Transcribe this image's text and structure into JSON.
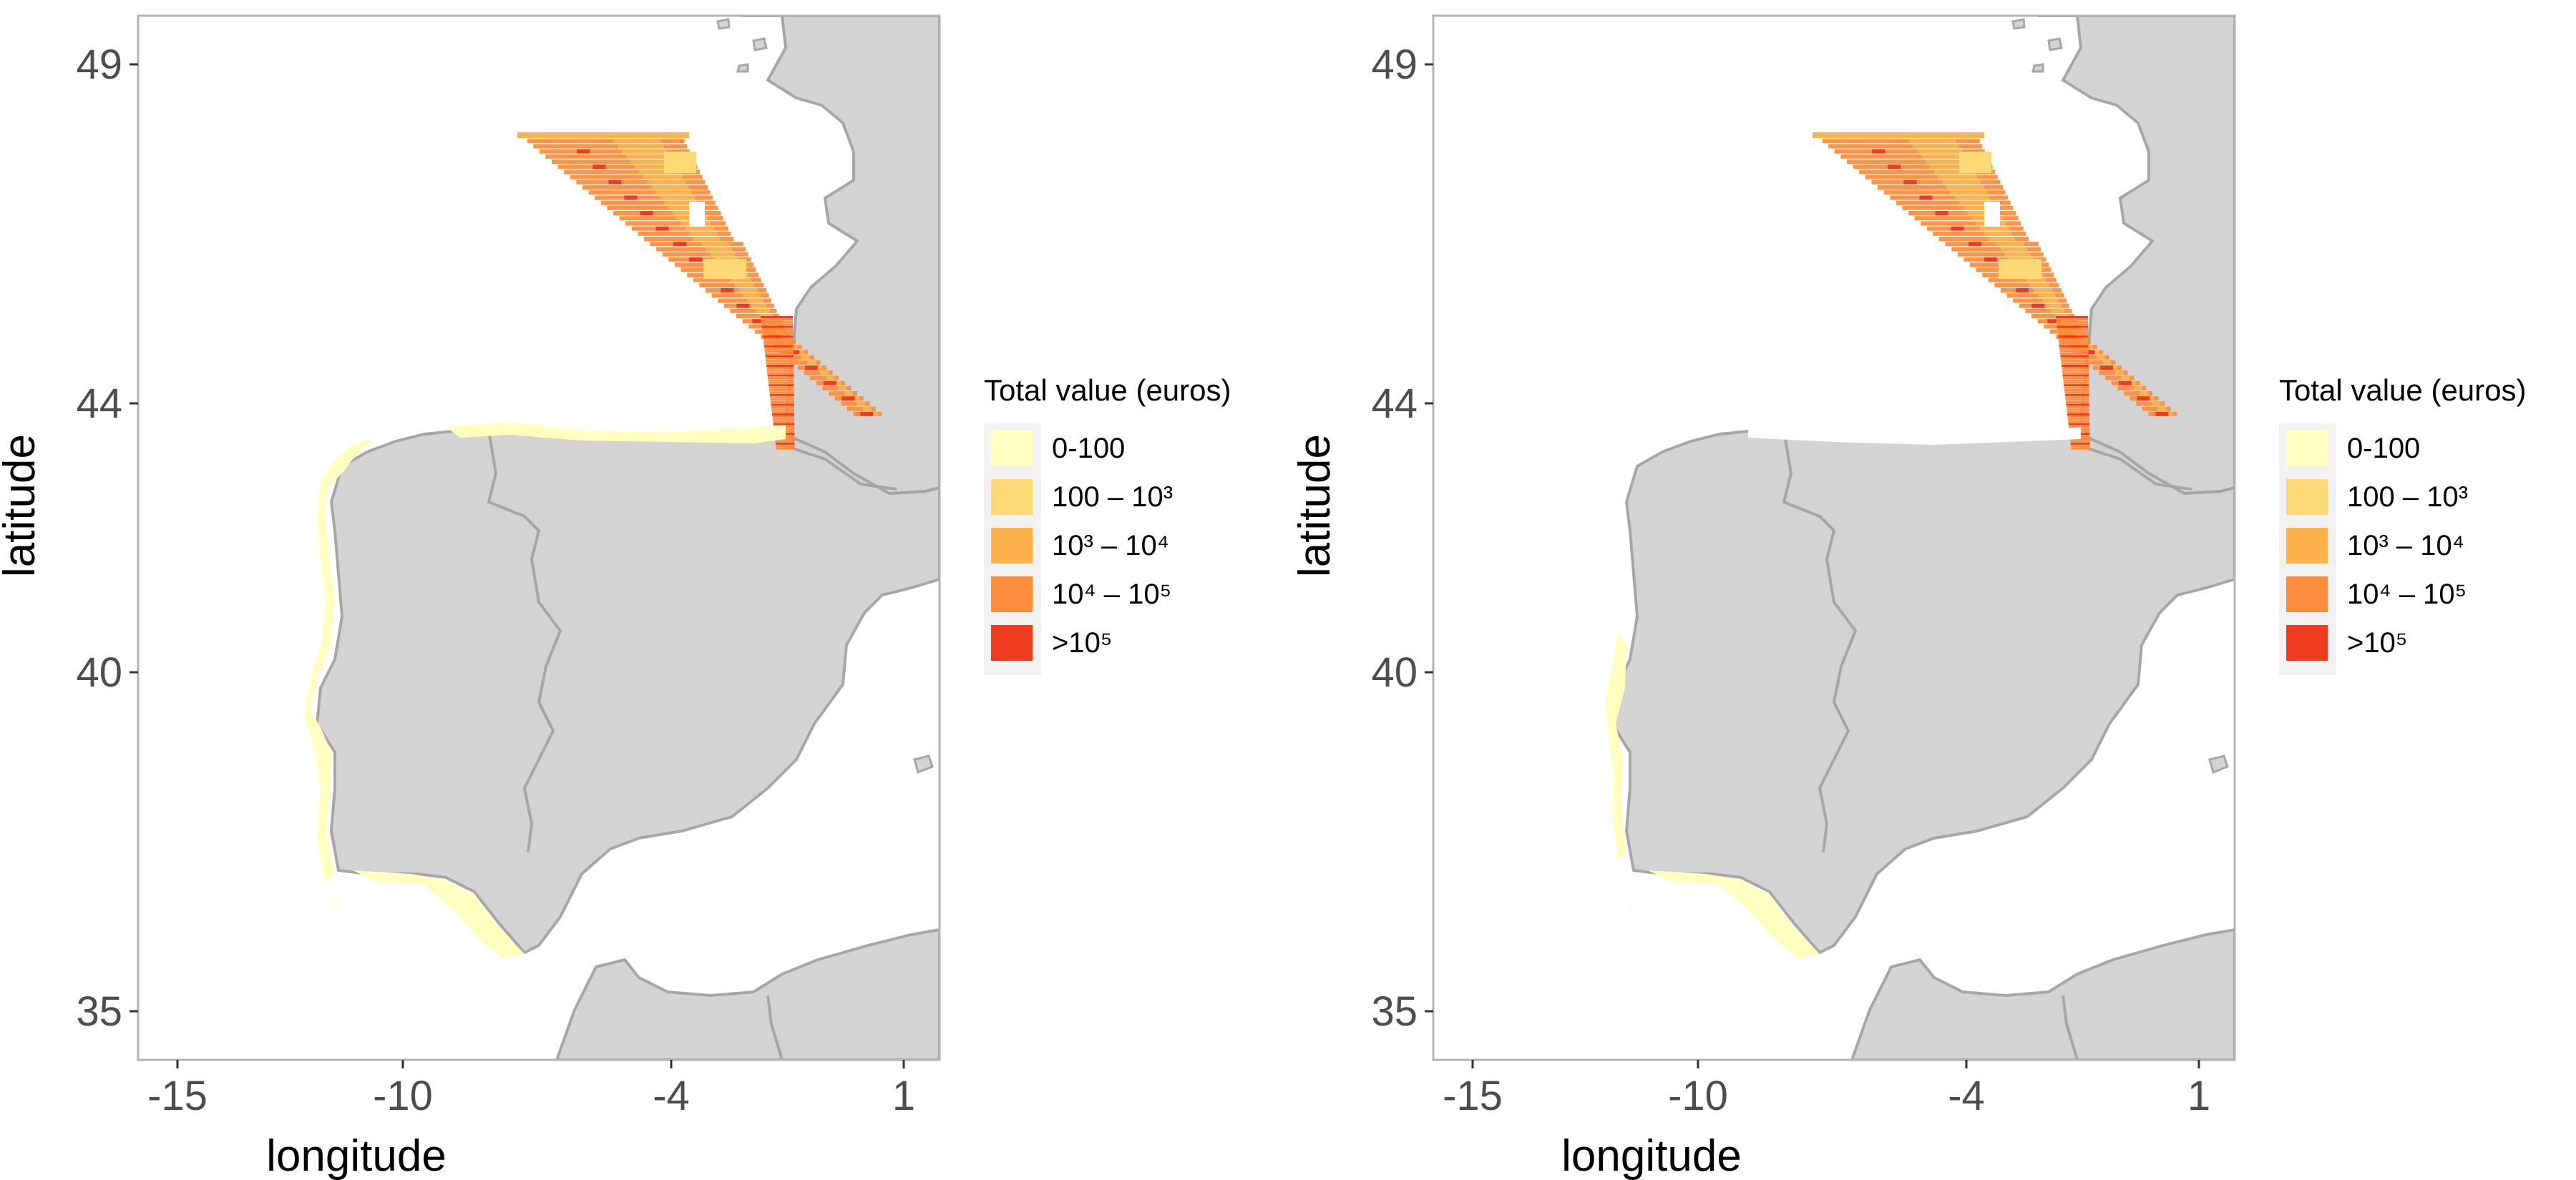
{
  "maps": [
    {
      "x_ticks": [
        "-15",
        "-10",
        "-4",
        "1"
      ],
      "y_ticks": [
        "49",
        "44",
        "40",
        "35"
      ],
      "xlabel": "longitude",
      "ylabel": "latitude",
      "legend": {
        "title": "Total value (euros)",
        "entries": [
          {
            "label": "0-100",
            "color": "#ffffc0"
          },
          {
            "label": "100 – 10³",
            "color": "#fed976"
          },
          {
            "label": "10³ – 10⁴",
            "color": "#feb24c"
          },
          {
            "label": "10⁴ – 10⁵",
            "color": "#fd8d3c"
          },
          {
            "label": ">10⁵",
            "color": "#f03b20"
          }
        ]
      }
    },
    {
      "x_ticks": [
        "-15",
        "-10",
        "-4",
        "1"
      ],
      "y_ticks": [
        "49",
        "44",
        "40",
        "35"
      ],
      "xlabel": "longitude",
      "ylabel": "latitude",
      "legend": {
        "title": "Total value (euros)",
        "entries": [
          {
            "label": "0-100",
            "color": "#ffffc0"
          },
          {
            "label": "100 – 10³",
            "color": "#fed976"
          },
          {
            "label": "10³ – 10⁴",
            "color": "#feb24c"
          },
          {
            "label": "10⁴ – 10⁵",
            "color": "#fd8d3c"
          },
          {
            "label": ">10⁵",
            "color": "#f03b20"
          }
        ]
      }
    }
  ],
  "colors": {
    "land": "#d3d3d3",
    "coastline": "#a6a6a6",
    "panel_border": "#b3b3b3",
    "legend_background": "#f2f2f2"
  }
}
